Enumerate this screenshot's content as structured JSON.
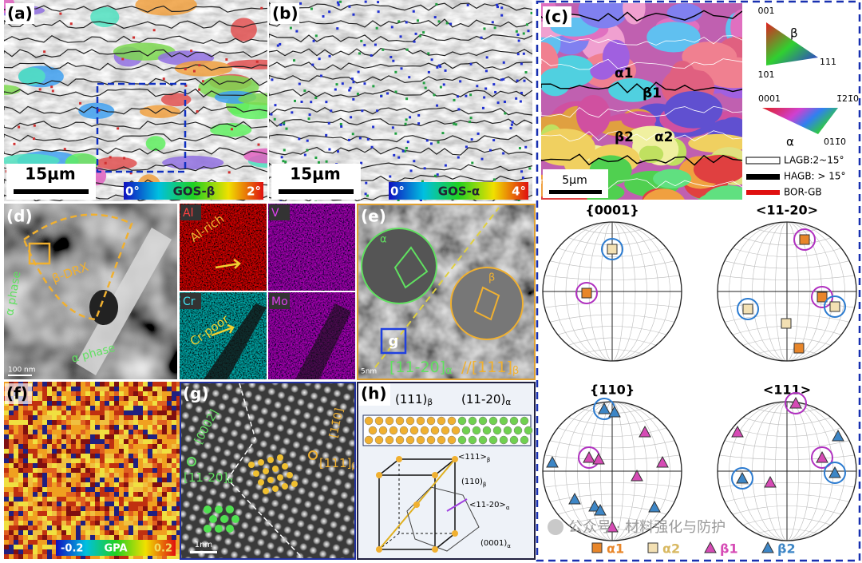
{
  "panel_a": {
    "label": "(a)",
    "scale_bar": "15μm",
    "colorbar_min": "0°",
    "colorbar_title": "GOS-β",
    "colorbar_max": "2°"
  },
  "panel_b": {
    "label": "(b)",
    "scale_bar": "15μm",
    "colorbar_min": "0°",
    "colorbar_title": "GOS-α",
    "colorbar_max": "4°"
  },
  "panel_c": {
    "label": "(c)",
    "grains": [
      "α1",
      "β1",
      "β2",
      "α2"
    ],
    "scale_bar": "5μm"
  },
  "ipf_beta": {
    "corner_top": "001",
    "symbol": "β",
    "corner_right": "111",
    "corner_bottom": "101"
  },
  "ipf_alpha": {
    "corner_left": "0001",
    "corner_right": "1̄21̄0",
    "symbol": "α",
    "corner_bottom": "011̄0"
  },
  "boundaries": [
    "LAGB:2~15°",
    "HAGB: > 15°",
    "BOR-GB"
  ],
  "panel_d": {
    "label": "(d)",
    "region": "β-DRX",
    "phase_labels": [
      "α phase",
      "α phase"
    ],
    "scale_bar": "100 nm"
  },
  "eds_maps": [
    {
      "element": "Al",
      "note": "Al-rich"
    },
    {
      "element": "V"
    },
    {
      "element": "Cr",
      "note": "Cr-poor"
    },
    {
      "element": "Mo"
    }
  ],
  "panel_e": {
    "label": "(e)",
    "fft_labels": [
      "α",
      "β"
    ],
    "inset_box": "g",
    "zone_alpha": "[11-20]",
    "zone_alpha_sub": "α",
    "separator": "//",
    "zone_beta": "[111]",
    "zone_beta_sub": "β",
    "scale_bar": "5nm"
  },
  "panel_f": {
    "label": "(f)",
    "colorbar_min": "-0.2",
    "colorbar_title": "GPA",
    "colorbar_max": "0.2"
  },
  "panel_g": {
    "label": "(g)",
    "plane_alpha": "[0002]",
    "zone_alpha": "[11-20]",
    "zone_alpha_sub": "α",
    "plane_beta": "[11̄0]",
    "zone_beta": "[111]",
    "zone_beta_sub": "β",
    "scale_bar": "1nm"
  },
  "panel_h": {
    "label": "(h)",
    "plane_beta": "(111)",
    "plane_beta_sub": "β",
    "plane_alpha": "(11-20)",
    "plane_alpha_sub": "α",
    "dir_beta": "<111>",
    "dir_beta_sub": "β",
    "plane_110": "(110)",
    "plane_110_sub": "β",
    "dir_alpha": "<11-20>",
    "dir_alpha_sub": "α",
    "basal": "(0001)",
    "basal_sub": "α"
  },
  "pole_figures": {
    "titles": [
      "{0001}",
      "<11-20>",
      "{110}",
      "<111>"
    ],
    "legend": [
      "α1",
      "α2",
      "β1",
      "β2"
    ]
  },
  "watermark": "公众号 · 材料强化与防护"
}
